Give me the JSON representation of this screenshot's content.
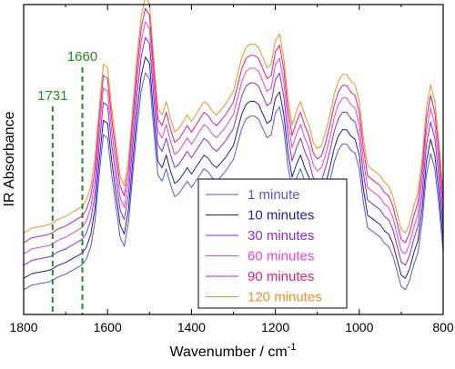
{
  "chart_data": {
    "type": "line",
    "xlabel": "Wavenumber / cm",
    "xlabel_superscript": "-1",
    "ylabel": "IR Absorbance",
    "x_axis": "reversed",
    "xlim": [
      1800,
      800
    ],
    "ylim": [
      0,
      1
    ],
    "x_ticks": [
      "1800",
      "1600",
      "1400",
      "1200",
      "1000",
      "800"
    ],
    "grid": false,
    "legend_position": "bottom-center",
    "markers": [
      {
        "label": "1731",
        "x": 1731,
        "color": "#228B22",
        "style": "dashed"
      },
      {
        "label": "1660",
        "x": 1660,
        "color": "#228B22",
        "style": "dashed"
      }
    ],
    "base_shape": {
      "x": [
        1800,
        1780,
        1760,
        1740,
        1731,
        1720,
        1700,
        1680,
        1660,
        1650,
        1640,
        1630,
        1620,
        1610,
        1600,
        1590,
        1580,
        1570,
        1560,
        1550,
        1540,
        1530,
        1520,
        1510,
        1500,
        1490,
        1480,
        1470,
        1460,
        1450,
        1440,
        1430,
        1420,
        1410,
        1400,
        1390,
        1380,
        1370,
        1360,
        1350,
        1340,
        1320,
        1300,
        1290,
        1280,
        1270,
        1260,
        1250,
        1240,
        1230,
        1220,
        1210,
        1200,
        1190,
        1180,
        1170,
        1160,
        1150,
        1140,
        1130,
        1120,
        1110,
        1100,
        1090,
        1080,
        1070,
        1060,
        1050,
        1040,
        1030,
        1020,
        1010,
        1000,
        990,
        980,
        970,
        960,
        950,
        940,
        930,
        920,
        910,
        900,
        890,
        880,
        870,
        860,
        850,
        840,
        830,
        820,
        810,
        800
      ],
      "y": [
        0.08,
        0.095,
        0.1,
        0.105,
        0.11,
        0.12,
        0.13,
        0.145,
        0.16,
        0.18,
        0.22,
        0.3,
        0.45,
        0.58,
        0.57,
        0.45,
        0.35,
        0.25,
        0.22,
        0.3,
        0.45,
        0.6,
        0.72,
        0.78,
        0.76,
        0.6,
        0.45,
        0.43,
        0.47,
        0.42,
        0.38,
        0.39,
        0.41,
        0.43,
        0.41,
        0.43,
        0.45,
        0.47,
        0.46,
        0.44,
        0.43,
        0.46,
        0.5,
        0.55,
        0.6,
        0.63,
        0.64,
        0.64,
        0.63,
        0.6,
        0.57,
        0.58,
        0.65,
        0.67,
        0.6,
        0.48,
        0.4,
        0.44,
        0.47,
        0.43,
        0.4,
        0.35,
        0.33,
        0.34,
        0.38,
        0.43,
        0.49,
        0.53,
        0.55,
        0.55,
        0.53,
        0.52,
        0.47,
        0.36,
        0.28,
        0.27,
        0.26,
        0.25,
        0.23,
        0.22,
        0.19,
        0.14,
        0.09,
        0.08,
        0.11,
        0.16,
        0.2,
        0.3,
        0.45,
        0.52,
        0.47,
        0.35,
        0.2
      ]
    },
    "series": [
      {
        "name": "1 minute",
        "color": "#5555ee",
        "offset": 0.0,
        "scale": 1.0
      },
      {
        "name": "10 minutes",
        "color": "#1e1e96",
        "offset": 0.035,
        "scale": 1.02
      },
      {
        "name": "30 minutes",
        "color": "#8b2be0",
        "offset": 0.075,
        "scale": 1.05
      },
      {
        "name": "60 minutes",
        "color": "#e044e0",
        "offset": 0.11,
        "scale": 1.07
      },
      {
        "name": "90 minutes",
        "color": "#e0207a",
        "offset": 0.145,
        "scale": 1.08
      },
      {
        "name": "120 minutes",
        "color": "#f0902a",
        "offset": 0.175,
        "scale": 1.09
      }
    ]
  }
}
